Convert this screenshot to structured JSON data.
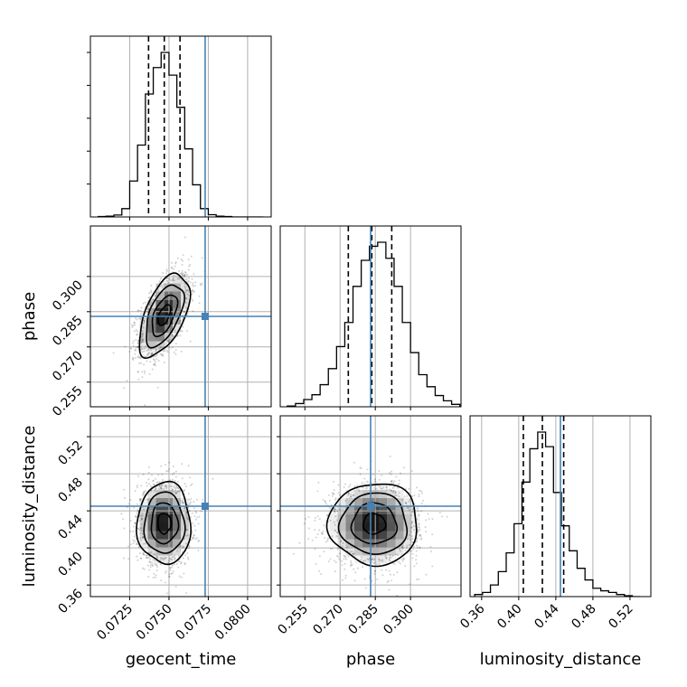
{
  "chart_data": {
    "type": "corner",
    "parameters": [
      "geocent_time",
      "phase",
      "luminosity_distance"
    ],
    "axis_labels": [
      "geocent_time",
      "phase",
      "luminosity_distance"
    ],
    "ranges": {
      "geocent_time": [
        0.07,
        0.0815
      ],
      "phase": [
        0.2445,
        0.3215
      ],
      "luminosity_distance": [
        0.3475,
        0.5425
      ]
    },
    "ticks": {
      "geocent_time": [
        "0.0725",
        "0.0750",
        "0.0775",
        "0.0800"
      ],
      "phase": [
        "0.255",
        "0.270",
        "0.285",
        "0.300"
      ],
      "luminosity_distance": [
        "0.36",
        "0.40",
        "0.44",
        "0.48",
        "0.52"
      ]
    },
    "truths": {
      "geocent_time": 0.0773,
      "phase": 0.283,
      "luminosity_distance": 0.445
    },
    "quantiles": {
      "geocent_time": [
        0.0737,
        0.0747,
        0.0757
      ],
      "phase": [
        0.2735,
        0.2835,
        0.292
      ],
      "luminosity_distance": [
        0.405,
        0.4255,
        0.4485
      ]
    },
    "histograms": {
      "geocent_time": {
        "edges": [
          0.0705,
          0.071,
          0.0715,
          0.072,
          0.0725,
          0.073,
          0.0735,
          0.074,
          0.0745,
          0.075,
          0.0755,
          0.076,
          0.0765,
          0.077,
          0.0775,
          0.078,
          0.0785,
          0.079,
          0.0795,
          0.08,
          0.0805,
          0.081
        ],
        "counts": [
          1,
          2,
          5,
          22,
          95,
          190,
          325,
          395,
          435,
          375,
          290,
          180,
          85,
          22,
          6,
          2,
          1,
          0,
          0,
          0,
          0
        ]
      },
      "phase": {
        "edges": [
          0.2475,
          0.251,
          0.2545,
          0.258,
          0.2615,
          0.265,
          0.2685,
          0.272,
          0.2755,
          0.279,
          0.2825,
          0.286,
          0.2895,
          0.293,
          0.2965,
          0.3,
          0.3035,
          0.307,
          0.3105,
          0.314,
          0.3175,
          0.321
        ],
        "counts": [
          2,
          8,
          18,
          30,
          55,
          95,
          150,
          210,
          300,
          365,
          400,
          410,
          370,
          300,
          210,
          135,
          80,
          50,
          28,
          15,
          6
        ]
      },
      "luminosity_distance": {
        "edges": [
          0.3525,
          0.361,
          0.3695,
          0.378,
          0.3865,
          0.395,
          0.4035,
          0.412,
          0.4205,
          0.429,
          0.4375,
          0.446,
          0.4545,
          0.463,
          0.4715,
          0.48,
          0.4885,
          0.497,
          0.5055,
          0.514,
          0.5225,
          0.531
        ],
        "counts": [
          5,
          10,
          28,
          60,
          105,
          175,
          275,
          355,
          395,
          360,
          250,
          170,
          110,
          68,
          40,
          20,
          14,
          10,
          5,
          2,
          0
        ]
      }
    },
    "pairs": [
      {
        "x": "geocent_time",
        "y": "phase",
        "center": [
          0.0747,
          0.2835
        ],
        "sd": [
          0.0008,
          0.0088
        ],
        "corr": 0.55
      },
      {
        "x": "geocent_time",
        "y": "luminosity_distance",
        "center": [
          0.0747,
          0.4265
        ],
        "sd": [
          0.00085,
          0.022
        ],
        "corr": 0.0
      },
      {
        "x": "phase",
        "y": "luminosity_distance",
        "center": [
          0.2845,
          0.426
        ],
        "sd": [
          0.0095,
          0.022
        ],
        "corr": 0.0
      }
    ],
    "colors": {
      "truth": "#4682b4",
      "hist": "#000000",
      "quantile": "#000000",
      "grid": "#b0b0b0",
      "points": "#000000"
    },
    "grid": true
  }
}
